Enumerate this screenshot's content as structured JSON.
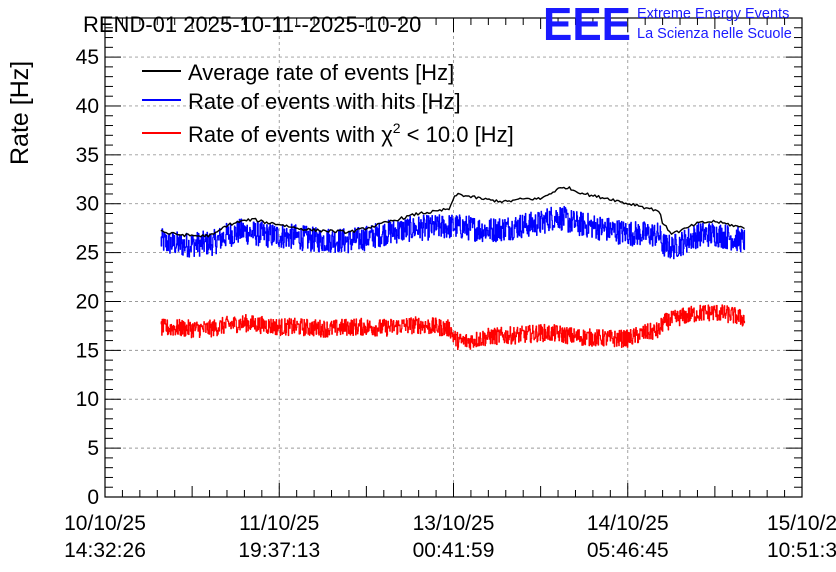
{
  "chart_data": {
    "type": "line",
    "title": "REND-01 2025-10-11--2025-10-20",
    "xlabel": "",
    "ylabel": "Rate [Hz]",
    "ylim": [
      0,
      49
    ],
    "yticks": [
      0,
      5,
      10,
      15,
      20,
      25,
      30,
      35,
      40,
      45
    ],
    "xticks": [
      {
        "date": "10/10/25",
        "time": "14:32:26"
      },
      {
        "date": "11/10/25",
        "time": "19:37:13"
      },
      {
        "date": "13/10/25",
        "time": "00:41:59"
      },
      {
        "date": "14/10/25",
        "time": "05:46:45"
      },
      {
        "date": "15/10/2",
        "time": "10:51:3"
      }
    ],
    "x_range_ticks": [
      0,
      4
    ],
    "x_data_range": [
      0.32,
      3.67
    ],
    "grid": true,
    "legend_position": "top-left",
    "legend": [
      {
        "label": "Average rate of events [Hz]",
        "color": "#000000",
        "pre": "Average rate of events [Hz]",
        "sup": "",
        "post": ""
      },
      {
        "label": "Rate of events with hits [Hz]",
        "color": "#0000ff",
        "pre": "Rate of events with hits [Hz]",
        "sup": "",
        "post": ""
      },
      {
        "label": "Rate of events with χ2 < 10.0 [Hz]",
        "color": "#ff0000",
        "pre": "Rate of events with χ",
        "sup": "2",
        "post": " < 10.0 [Hz]"
      }
    ],
    "series": [
      {
        "name": "Average rate of events [Hz]",
        "color": "#000000",
        "noise": 0.25,
        "x": [
          0.32,
          0.35,
          0.45,
          0.55,
          0.62,
          0.7,
          0.78,
          0.85,
          0.92,
          1.0,
          1.1,
          1.2,
          1.3,
          1.4,
          1.5,
          1.6,
          1.7,
          1.8,
          1.9,
          1.98,
          2.0,
          2.02,
          2.05,
          2.1,
          2.2,
          2.3,
          2.4,
          2.5,
          2.55,
          2.6,
          2.65,
          2.7,
          2.8,
          2.9,
          3.0,
          3.05,
          3.1,
          3.15,
          3.18,
          3.2,
          3.25,
          3.3,
          3.4,
          3.5,
          3.6,
          3.67
        ],
        "y": [
          27.3,
          27.0,
          26.8,
          26.7,
          26.8,
          27.8,
          28.2,
          28.4,
          28.1,
          27.9,
          27.5,
          27.3,
          27.2,
          27.1,
          27.5,
          28.0,
          28.5,
          29.0,
          29.2,
          29.5,
          30.5,
          31.0,
          30.9,
          30.7,
          30.4,
          30.2,
          30.5,
          30.5,
          31.0,
          31.5,
          31.7,
          31.3,
          30.8,
          30.5,
          30.0,
          29.9,
          29.6,
          29.4,
          29.3,
          28.0,
          27.0,
          27.2,
          28.0,
          28.2,
          27.8,
          27.5
        ]
      },
      {
        "name": "Rate of events with hits [Hz]",
        "color": "#0000ff",
        "noise": 1.3,
        "x": [
          0.32,
          0.35,
          0.45,
          0.55,
          0.62,
          0.7,
          0.78,
          0.85,
          0.92,
          1.0,
          1.1,
          1.2,
          1.3,
          1.4,
          1.5,
          1.6,
          1.7,
          1.8,
          1.9,
          2.0,
          2.1,
          2.2,
          2.3,
          2.4,
          2.5,
          2.55,
          2.6,
          2.65,
          2.7,
          2.8,
          2.9,
          3.0,
          3.1,
          3.18,
          3.2,
          3.25,
          3.3,
          3.4,
          3.5,
          3.6,
          3.67
        ],
        "y": [
          26.2,
          26.0,
          25.8,
          25.9,
          26.0,
          26.8,
          27.2,
          27.0,
          26.8,
          26.7,
          26.6,
          26.3,
          26.3,
          26.2,
          26.5,
          27.0,
          27.3,
          27.5,
          27.6,
          27.7,
          27.5,
          27.3,
          27.5,
          27.8,
          28.0,
          28.5,
          28.7,
          28.3,
          28.0,
          27.7,
          27.3,
          27.0,
          26.9,
          26.8,
          25.8,
          25.5,
          25.9,
          26.8,
          26.9,
          26.5,
          26.2
        ]
      },
      {
        "name": "Rate of events with χ2 < 10.0 [Hz]",
        "color": "#ff0000",
        "noise": 0.9,
        "x": [
          0.32,
          0.4,
          0.5,
          0.6,
          0.7,
          0.8,
          0.9,
          1.0,
          1.1,
          1.2,
          1.3,
          1.4,
          1.5,
          1.6,
          1.7,
          1.8,
          1.9,
          1.98,
          2.0,
          2.02,
          2.05,
          2.1,
          2.2,
          2.3,
          2.4,
          2.5,
          2.6,
          2.7,
          2.8,
          2.9,
          3.0,
          3.1,
          3.18,
          3.2,
          3.3,
          3.4,
          3.5,
          3.6,
          3.67
        ],
        "y": [
          17.3,
          17.3,
          17.2,
          17.2,
          17.6,
          17.8,
          17.6,
          17.4,
          17.4,
          17.3,
          17.2,
          17.4,
          17.4,
          17.3,
          17.5,
          17.6,
          17.4,
          17.2,
          16.4,
          16.0,
          15.9,
          16.0,
          16.4,
          16.5,
          16.6,
          16.8,
          16.7,
          16.4,
          16.3,
          16.2,
          16.2,
          16.8,
          17.0,
          17.8,
          18.4,
          18.8,
          18.9,
          18.6,
          18.2
        ]
      }
    ]
  },
  "logo": {
    "mark": "EEE",
    "line1": "Extreme Energy Events",
    "line2": "La Scienza nelle Scuole",
    "color": "#1a1aff"
  }
}
